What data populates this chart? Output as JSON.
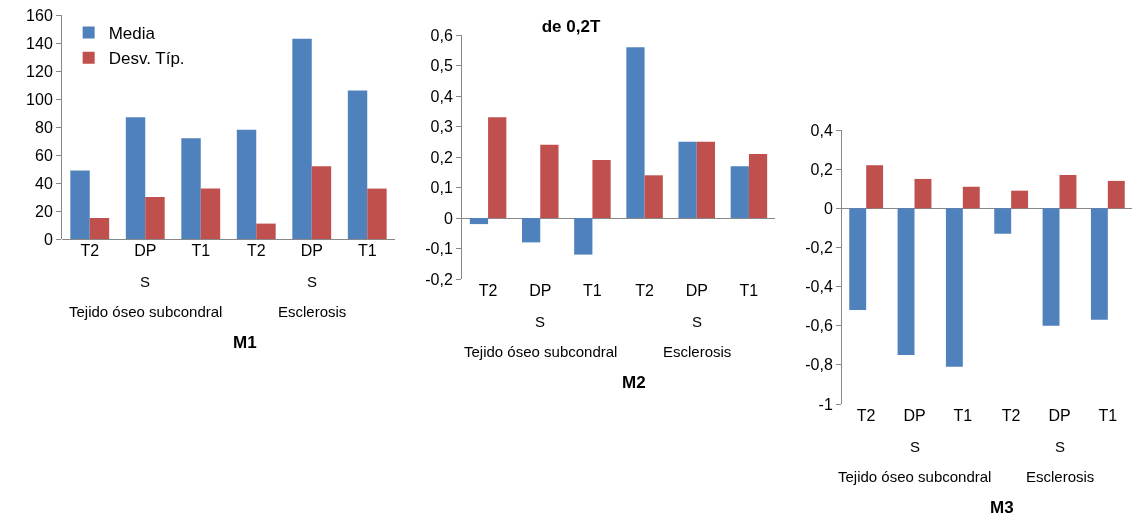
{
  "chart_data": [
    {
      "type": "bar",
      "xlabel": "M1",
      "categories": [
        "T2",
        "DP",
        "T1",
        "T2",
        "DP",
        "T1"
      ],
      "series": [
        {
          "name": "Media",
          "color": "#4f81bd",
          "values": [
            49,
            87,
            72,
            78,
            143,
            106
          ]
        },
        {
          "name": "Desv. Típ.",
          "color": "#c0504d",
          "values": [
            15,
            30,
            36,
            11,
            52,
            36
          ]
        }
      ],
      "ylim": [
        0,
        160
      ],
      "yticks": [
        0,
        20,
        40,
        60,
        80,
        100,
        120,
        140,
        160
      ],
      "legend": "top left",
      "annotations": [
        "S",
        "S",
        "Tejido óseo subcondral",
        "Esclerosis"
      ]
    },
    {
      "type": "bar",
      "title": "de 0,2T",
      "xlabel": "M2",
      "categories": [
        "T2",
        "DP",
        "T1",
        "T2",
        "DP",
        "T1"
      ],
      "series": [
        {
          "color": "#4f81bd",
          "values": [
            -0.02,
            -0.08,
            -0.12,
            0.56,
            0.25,
            0.17
          ]
        },
        {
          "color": "#c0504d",
          "values": [
            0.33,
            0.24,
            0.19,
            0.14,
            0.25,
            0.21
          ]
        }
      ],
      "ylim": [
        -0.2,
        0.6
      ],
      "yticks": [
        {
          "value": -0.2,
          "label": "-0,2"
        },
        {
          "value": -0.1,
          "label": "-0,1"
        },
        0,
        {
          "value": 0.1,
          "label": "0,1"
        },
        {
          "value": 0.2,
          "label": "0,2"
        },
        {
          "value": 0.3,
          "label": "0,3"
        },
        {
          "value": 0.4,
          "label": "0,4"
        },
        {
          "value": 0.5,
          "label": "0,5"
        },
        {
          "value": 0.6,
          "label": "0,6"
        }
      ],
      "annotations": [
        "S",
        "S",
        "Tejido óseo subcondral",
        "Esclerosis"
      ]
    },
    {
      "type": "bar",
      "xlabel": "M3",
      "categories": [
        "T2",
        "DP",
        "T1",
        "T2",
        "DP",
        "T1"
      ],
      "series": [
        {
          "color": "#4f81bd",
          "values": [
            -0.52,
            -0.75,
            -0.81,
            -0.13,
            -0.6,
            -0.57
          ]
        },
        {
          "color": "#c0504d",
          "values": [
            0.22,
            0.15,
            0.11,
            0.09,
            0.17,
            0.14
          ]
        }
      ],
      "ylim": [
        -1,
        0.4
      ],
      "yticks": [
        -1,
        {
          "value": -0.8,
          "label": "-0,8"
        },
        {
          "value": -0.6,
          "label": "-0,6"
        },
        {
          "value": -0.4,
          "label": "-0,4"
        },
        {
          "value": -0.2,
          "label": "-0,2"
        },
        0,
        {
          "value": 0.2,
          "label": "0,2"
        },
        {
          "value": 0.4,
          "label": "0,4"
        }
      ],
      "annotations": [
        "S",
        "S",
        "Tejido óseo subcondral",
        "Esclerosis"
      ]
    }
  ]
}
